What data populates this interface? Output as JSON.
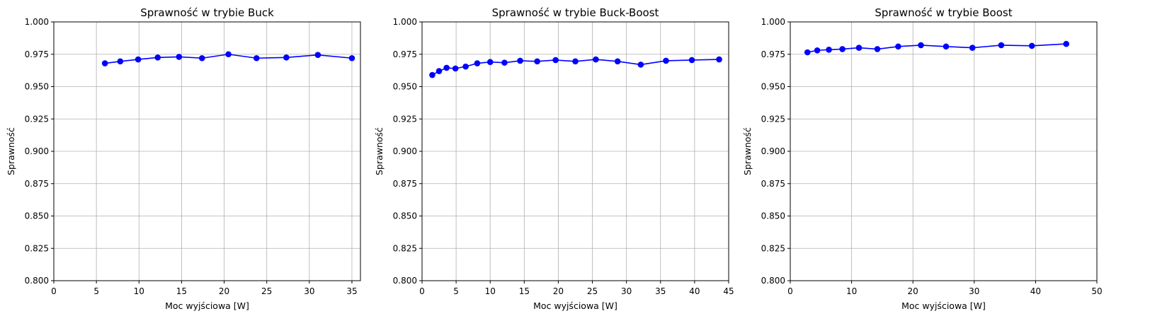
{
  "chart_data": [
    {
      "type": "line",
      "title": "Sprawność w trybie Buck",
      "xlabel": "Moc wyjściowa [W]",
      "ylabel": "Sprawność",
      "xlim": [
        0,
        36
      ],
      "ylim": [
        0.8,
        1.0
      ],
      "xticks": [
        0,
        5,
        10,
        15,
        20,
        25,
        30,
        35
      ],
      "yticks": [
        0.8,
        0.825,
        0.85,
        0.875,
        0.9,
        0.925,
        0.95,
        0.975,
        1.0
      ],
      "grid": true,
      "color": "#0000ff",
      "marker": "circle",
      "x": [
        6.0,
        7.8,
        9.9,
        12.2,
        14.7,
        17.4,
        20.5,
        23.8,
        27.3,
        31.0,
        35.0
      ],
      "y": [
        0.968,
        0.9695,
        0.971,
        0.9725,
        0.973,
        0.972,
        0.975,
        0.972,
        0.9725,
        0.9745,
        0.972
      ]
    },
    {
      "type": "line",
      "title": "Sprawność w trybie Buck-Boost",
      "xlabel": "Moc wyjściowa [W]",
      "ylabel": "Sprawność",
      "xlim": [
        0,
        45
      ],
      "ylim": [
        0.8,
        1.0
      ],
      "xticks": [
        0,
        5,
        10,
        15,
        20,
        25,
        30,
        35,
        40,
        45
      ],
      "yticks": [
        0.8,
        0.825,
        0.85,
        0.875,
        0.9,
        0.925,
        0.95,
        0.975,
        1.0
      ],
      "grid": true,
      "color": "#0000ff",
      "marker": "circle",
      "x": [
        1.5,
        2.5,
        3.6,
        4.9,
        6.4,
        8.1,
        10.0,
        12.1,
        14.4,
        16.9,
        19.6,
        22.5,
        25.5,
        28.7,
        32.1,
        35.8,
        39.6,
        43.6
      ],
      "y": [
        0.959,
        0.962,
        0.9645,
        0.964,
        0.9655,
        0.968,
        0.969,
        0.9685,
        0.97,
        0.9695,
        0.9705,
        0.9695,
        0.971,
        0.9695,
        0.967,
        0.97,
        0.9705,
        0.971
      ]
    },
    {
      "type": "line",
      "title": "Sprawność w trybie Boost",
      "xlabel": "Moc wyjściowa [W]",
      "ylabel": "Sprawność",
      "xlim": [
        0,
        50
      ],
      "ylim": [
        0.8,
        1.0
      ],
      "xticks": [
        0,
        10,
        20,
        30,
        40,
        50
      ],
      "yticks": [
        0.8,
        0.825,
        0.85,
        0.875,
        0.9,
        0.925,
        0.95,
        0.975,
        1.0
      ],
      "grid": true,
      "color": "#0000ff",
      "marker": "circle",
      "x": [
        2.8,
        4.4,
        6.3,
        8.5,
        11.2,
        14.2,
        17.6,
        21.3,
        25.4,
        29.7,
        34.4,
        39.4,
        45.0
      ],
      "y": [
        0.9765,
        0.978,
        0.9785,
        0.979,
        0.98,
        0.979,
        0.981,
        0.982,
        0.981,
        0.98,
        0.982,
        0.9815,
        0.983
      ]
    }
  ]
}
